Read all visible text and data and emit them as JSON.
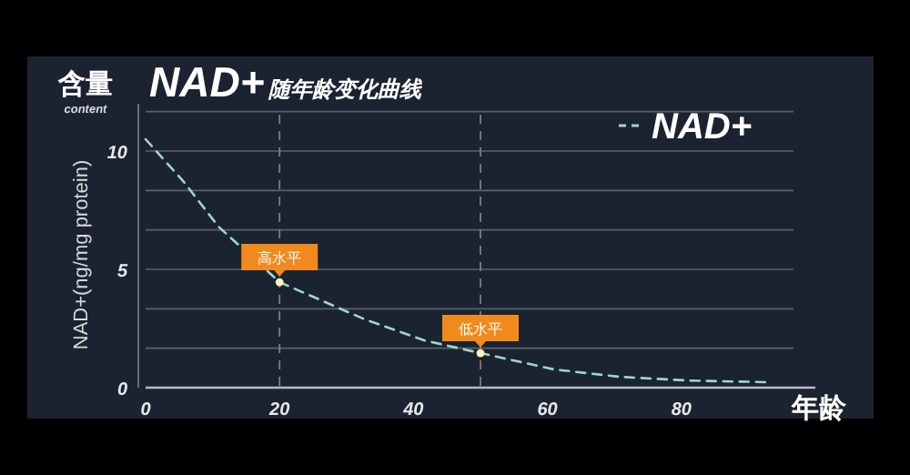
{
  "chart_data": {
    "type": "line",
    "title": "NAD+随年龄变化曲线",
    "xlabel": "年龄",
    "ylabel": "NAD+(ng/mg protein)",
    "annotations": [
      "含量",
      "content",
      {
        "text": "高水平",
        "x": 20,
        "y": 4.46
      },
      {
        "text": "低水平",
        "x": 50,
        "y": 1.46
      }
    ],
    "x": [
      0,
      5.7,
      10.9,
      20,
      32.6,
      41.6,
      50,
      61,
      70.7,
      81,
      93
    ],
    "series": [
      {
        "name": "NAD+",
        "color": "#9fd8c0",
        "values": [
          10.5,
          8.7,
          6.8,
          4.46,
          2.9,
          2.0,
          1.46,
          0.77,
          0.46,
          0.3,
          0.23
        ]
      }
    ],
    "xlim": [
      0,
      100
    ],
    "xticks": [
      0,
      20,
      40,
      60,
      80
    ],
    "ylim": [
      0,
      12
    ],
    "yticks": [
      0,
      {
        "value": 1.67,
        "label": null
      },
      {
        "value": 3.33,
        "label": null
      },
      5,
      {
        "value": 6.67,
        "label": null
      },
      {
        "value": 8.33,
        "label": null
      },
      10,
      {
        "value": 11.67,
        "label": null
      }
    ],
    "ref_lines": [
      {
        "axis": "x",
        "value": 20,
        "color": "#8a7a70",
        "line_style": "dashed"
      },
      {
        "axis": "x",
        "value": 50,
        "color": "#8a7a70",
        "line_style": "dashed"
      }
    ],
    "grid": "y",
    "legend": "top right",
    "line_style": "dashed",
    "marker": "none"
  }
}
